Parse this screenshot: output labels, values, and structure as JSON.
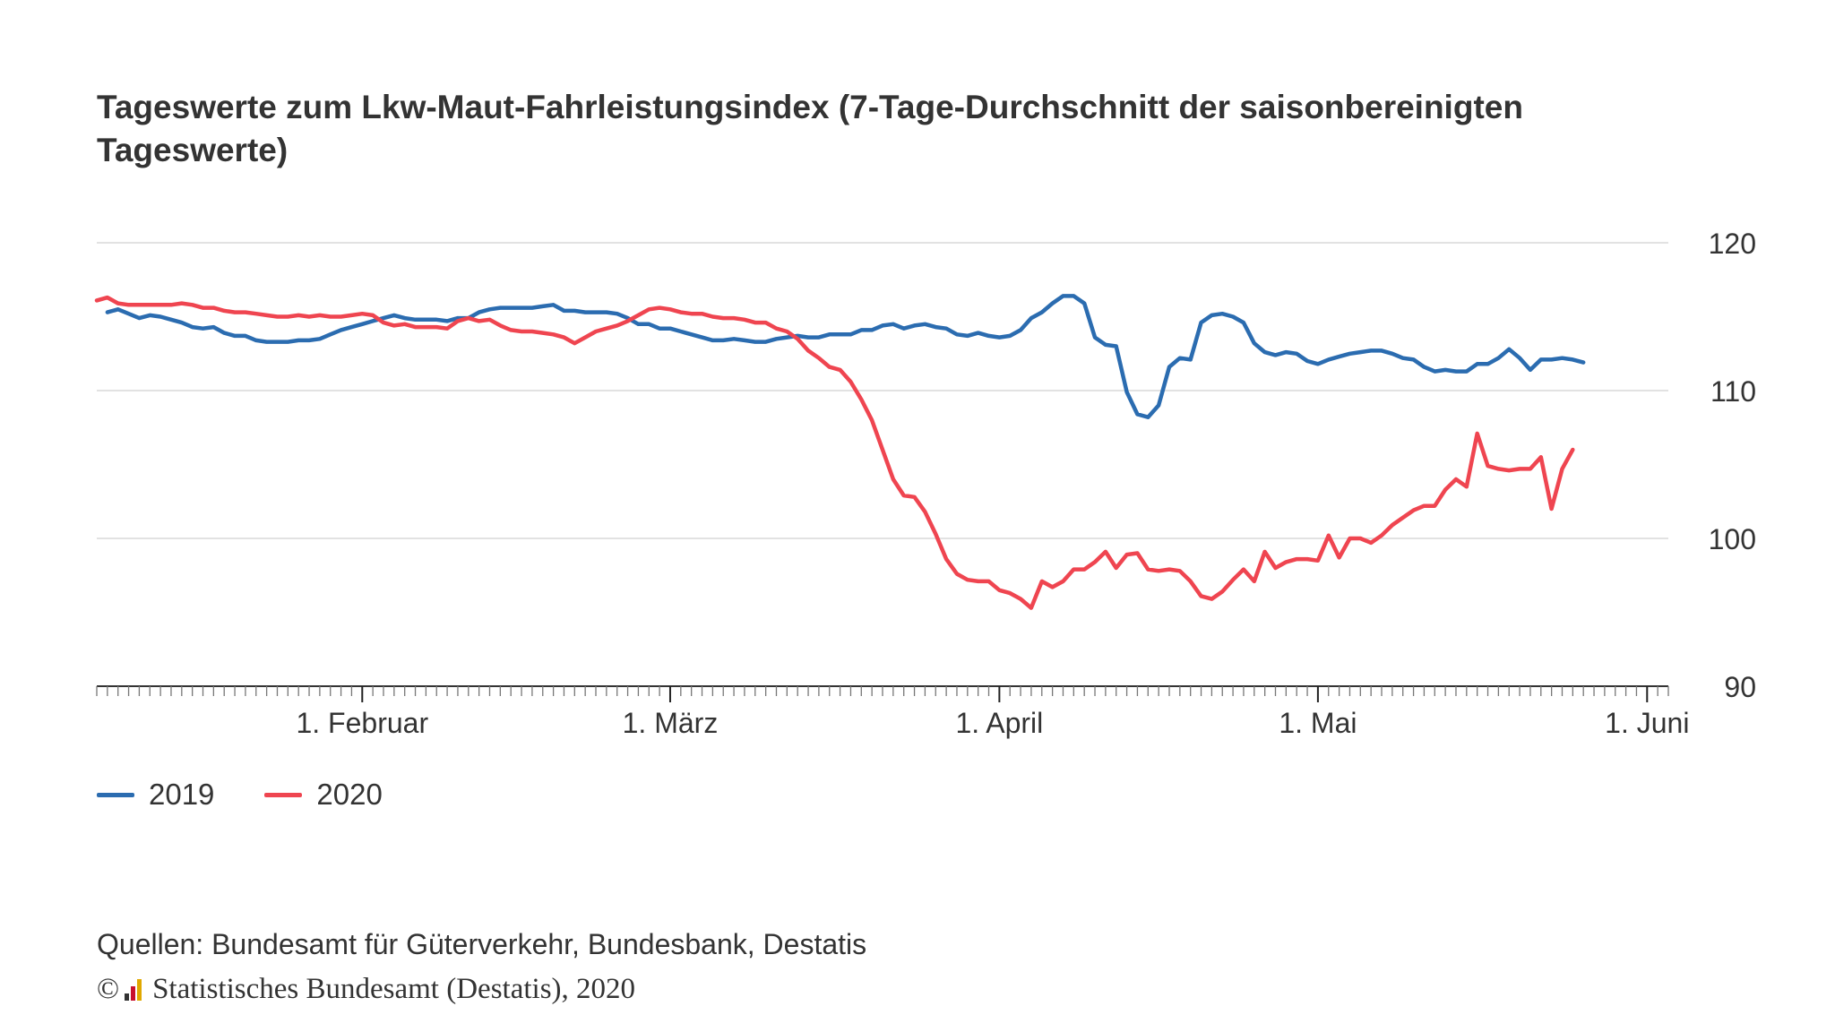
{
  "title": "Tageswerte zum Lkw-Maut-Fahrleistungsindex (7-Tage-Durchschnitt der saisonbereinigten Tageswerte)",
  "source": "Quellen: Bundesamt für Güterverkehr, Bundesbank, Destatis",
  "copyright_symbol": "©",
  "copyright": "Statistisches Bundesamt (Destatis), 2020",
  "colors": {
    "2019": "#2b6cb0",
    "2020": "#ef4550",
    "grid": "#d9d9d9",
    "axis": "#333333"
  },
  "chart_data": {
    "type": "line",
    "x_start": "2020-01-07",
    "ylim": [
      90,
      120
    ],
    "yticks": [
      90,
      100,
      110,
      120
    ],
    "xtick_labels": [
      {
        "label": "1. Februar",
        "date": "2020-02-01"
      },
      {
        "label": "1. März",
        "date": "2020-03-01"
      },
      {
        "label": "1. April",
        "date": "2020-04-01"
      },
      {
        "label": "1. Mai",
        "date": "2020-05-01"
      },
      {
        "label": "1. Juni",
        "date": "2020-06-01"
      }
    ],
    "x_range": [
      "2020-01-07",
      "2020-06-03"
    ],
    "grid": true,
    "legend_position": "bottom-left",
    "series": [
      {
        "name": "2019",
        "color": "#2b6cb0",
        "start": "2020-01-08",
        "values": [
          115.3,
          115.5,
          115.2,
          114.9,
          115.1,
          115.0,
          114.8,
          114.6,
          114.3,
          114.2,
          114.3,
          113.9,
          113.7,
          113.7,
          113.4,
          113.3,
          113.3,
          113.3,
          113.4,
          113.4,
          113.5,
          113.8,
          114.1,
          114.3,
          114.5,
          114.7,
          114.9,
          115.1,
          114.9,
          114.8,
          114.8,
          114.8,
          114.7,
          114.9,
          114.9,
          115.3,
          115.5,
          115.6,
          115.6,
          115.6,
          115.6,
          115.7,
          115.8,
          115.4,
          115.4,
          115.3,
          115.3,
          115.3,
          115.2,
          114.9,
          114.5,
          114.5,
          114.2,
          114.2,
          114.0,
          113.8,
          113.6,
          113.4,
          113.4,
          113.5,
          113.4,
          113.3,
          113.3,
          113.5,
          113.6,
          113.7,
          113.6,
          113.6,
          113.8,
          113.8,
          113.8,
          114.1,
          114.1,
          114.4,
          114.5,
          114.2,
          114.4,
          114.5,
          114.3,
          114.2,
          113.8,
          113.7,
          113.9,
          113.7,
          113.6,
          113.7,
          114.1,
          114.9,
          115.3,
          115.9,
          116.4,
          116.4,
          115.9,
          113.6,
          113.1,
          113.0,
          109.9,
          108.4,
          108.2,
          109.0,
          111.6,
          112.2,
          112.1,
          114.6,
          115.1,
          115.2,
          115.0,
          114.6,
          113.2,
          112.6,
          112.4,
          112.6,
          112.5,
          112.0,
          111.8,
          112.1,
          112.3,
          112.5,
          112.6,
          112.7,
          112.7,
          112.5,
          112.2,
          112.1,
          111.6,
          111.3,
          111.4,
          111.3,
          111.3,
          111.8,
          111.8,
          112.2,
          112.8,
          112.2,
          111.4,
          112.1,
          112.1,
          112.2,
          112.1,
          111.9
        ]
      },
      {
        "name": "2020",
        "color": "#ef4550",
        "start": "2020-01-07",
        "values": [
          116.1,
          116.3,
          115.9,
          115.8,
          115.8,
          115.8,
          115.8,
          115.8,
          115.9,
          115.8,
          115.6,
          115.6,
          115.4,
          115.3,
          115.3,
          115.2,
          115.1,
          115.0,
          115.0,
          115.1,
          115.0,
          115.1,
          115.0,
          115.0,
          115.1,
          115.2,
          115.1,
          114.6,
          114.4,
          114.5,
          114.3,
          114.3,
          114.3,
          114.2,
          114.7,
          114.9,
          114.7,
          114.8,
          114.4,
          114.1,
          114.0,
          114.0,
          113.9,
          113.8,
          113.6,
          113.2,
          113.6,
          114.0,
          114.2,
          114.4,
          114.7,
          115.1,
          115.5,
          115.6,
          115.5,
          115.3,
          115.2,
          115.2,
          115.0,
          114.9,
          114.9,
          114.8,
          114.6,
          114.6,
          114.2,
          114.0,
          113.5,
          112.7,
          112.2,
          111.6,
          111.4,
          110.6,
          109.4,
          108.0,
          106.0,
          104.0,
          102.9,
          102.8,
          101.8,
          100.3,
          98.6,
          97.6,
          97.2,
          97.1,
          97.1,
          96.5,
          96.3,
          95.9,
          95.3,
          97.1,
          96.7,
          97.1,
          97.9,
          97.9,
          98.4,
          99.1,
          98.0,
          98.9,
          99.0,
          97.9,
          97.8,
          97.9,
          97.8,
          97.1,
          96.1,
          95.9,
          96.4,
          97.2,
          97.9,
          97.1,
          99.1,
          98.0,
          98.4,
          98.6,
          98.6,
          98.5,
          100.2,
          98.7,
          100.0,
          100.0,
          99.7,
          100.2,
          100.9,
          101.4,
          101.9,
          102.2,
          102.2,
          103.3,
          104.0,
          103.5,
          107.1,
          104.9,
          104.7,
          104.6,
          104.7,
          104.7,
          105.5,
          102.0,
          104.7,
          106.0
        ]
      }
    ]
  }
}
